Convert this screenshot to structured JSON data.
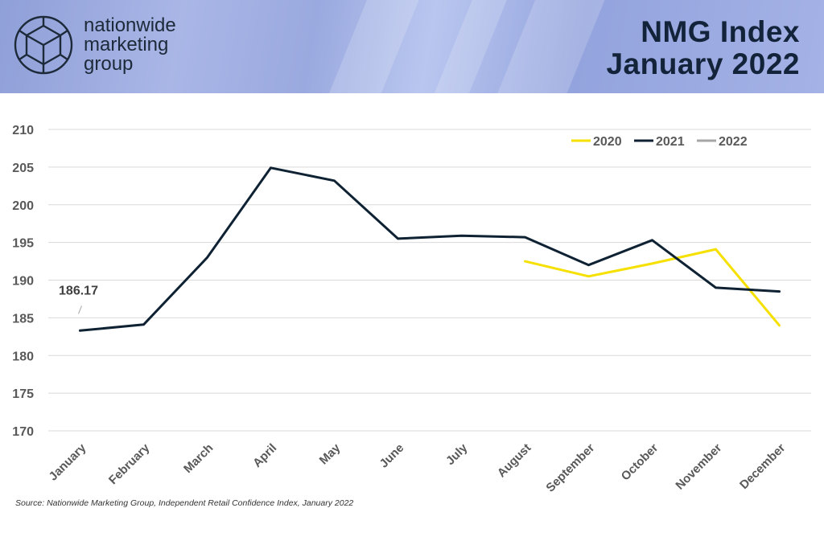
{
  "header": {
    "brand_lines": [
      "nationwide",
      "marketing",
      "group"
    ],
    "title_lines": [
      "NMG Index",
      "January 2022"
    ]
  },
  "source": "Source: Nationwide Marketing Group, Independent Retail Confidence Index, January 2022",
  "colors": {
    "2020": "#f5e000",
    "2021": "#0f2233",
    "2022": "#a6a6a6",
    "grid": "#d9d9d9",
    "axis_text": "#595959"
  },
  "chart_data": {
    "type": "line",
    "categories": [
      "January",
      "February",
      "March",
      "April",
      "May",
      "June",
      "July",
      "August",
      "September",
      "October",
      "November",
      "December"
    ],
    "ylim": [
      170,
      210
    ],
    "yticks": [
      170,
      175,
      180,
      185,
      190,
      195,
      200,
      205,
      210
    ],
    "grid": true,
    "legend_position": "top-right",
    "series": [
      {
        "name": "2020",
        "values": [
          null,
          null,
          null,
          null,
          null,
          null,
          null,
          192.5,
          190.5,
          192.2,
          194.1,
          184.0
        ]
      },
      {
        "name": "2021",
        "values": [
          183.3,
          184.1,
          193.0,
          204.9,
          203.2,
          195.5,
          195.9,
          195.7,
          192.0,
          195.3,
          189.0,
          188.5
        ]
      },
      {
        "name": "2022",
        "values": [
          186.17,
          null,
          null,
          null,
          null,
          null,
          null,
          null,
          null,
          null,
          null,
          null
        ]
      }
    ],
    "annotations": [
      {
        "text": "186.17",
        "series": "2022",
        "category": "January"
      }
    ]
  }
}
